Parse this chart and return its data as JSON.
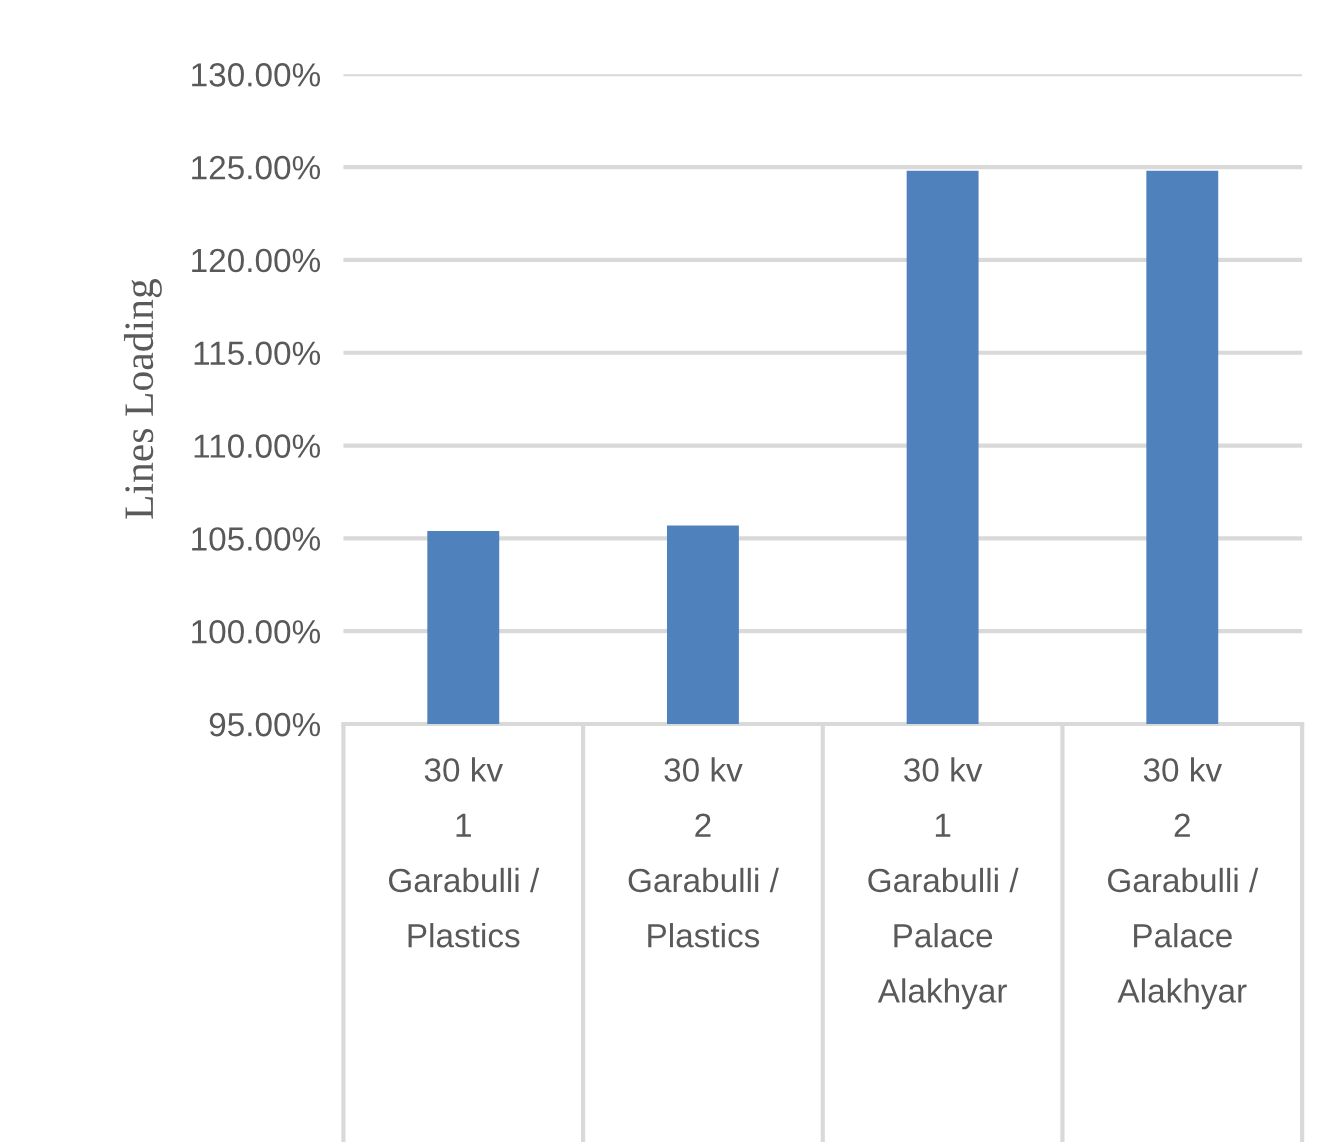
{
  "chart_data": {
    "type": "bar",
    "ylabel": "Lines Loading",
    "categories": [
      "30 kv\n1\nGarabulli /\nPlastics",
      "30 kv\n2\nGarabulli /\nPlastics",
      "30 kv\n1\nGarabulli /\nPalace\nAlakhyar",
      "30 kv\n2\nGarabulli /\nPalace\nAlakhyar"
    ],
    "values": [
      105.4,
      105.7,
      124.8,
      124.8
    ],
    "color": "#4f81bd",
    "ylim": [
      95,
      130
    ],
    "yticks": [
      {
        "value": 95,
        "label": "95.00%"
      },
      {
        "value": 100,
        "label": "100.00%"
      },
      {
        "value": 105,
        "label": "105.00%"
      },
      {
        "value": 110,
        "label": "110.00%"
      },
      {
        "value": 115,
        "label": "115.00%"
      },
      {
        "value": 120,
        "label": "120.00%"
      },
      {
        "value": 125,
        "label": "125.00%"
      },
      {
        "value": 130,
        "label": "130.00%"
      }
    ],
    "grid": "y",
    "legend": false
  }
}
